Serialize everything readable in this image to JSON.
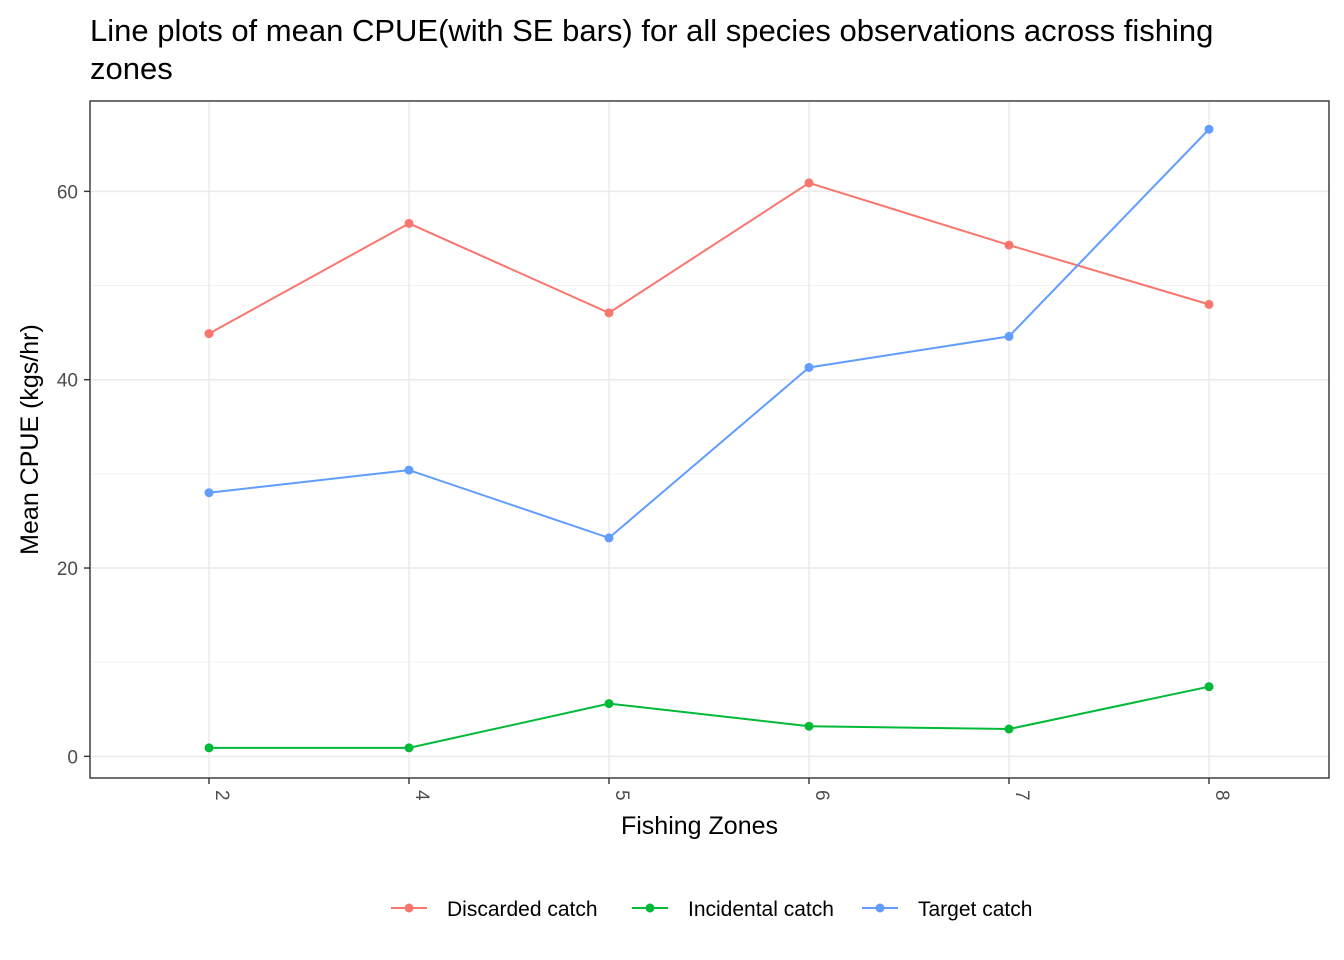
{
  "chart_data": {
    "type": "line",
    "title": "Line plots of mean CPUE(with SE bars) for all species observations across fishing zones",
    "xlabel": "Fishing Zones",
    "ylabel": "Mean CPUE (kgs/hr)",
    "categories": [
      "2",
      "4",
      "5",
      "6",
      "7",
      "8"
    ],
    "yticks": [
      0,
      20,
      40,
      60
    ],
    "ylim": [
      -2.3,
      69.6
    ],
    "grid": true,
    "legend_position": "bottom",
    "series": [
      {
        "name": "Discarded catch",
        "color": "#F8766D",
        "values": [
          44.9,
          56.6,
          47.1,
          60.9,
          54.3,
          48.0
        ]
      },
      {
        "name": "Incidental catch",
        "color": "#00BA38",
        "values": [
          0.9,
          0.9,
          5.6,
          3.2,
          2.9,
          7.4
        ]
      },
      {
        "name": "Target catch",
        "color": "#619CFF",
        "values": [
          28.0,
          30.4,
          23.2,
          41.3,
          44.6,
          66.6
        ]
      }
    ]
  }
}
